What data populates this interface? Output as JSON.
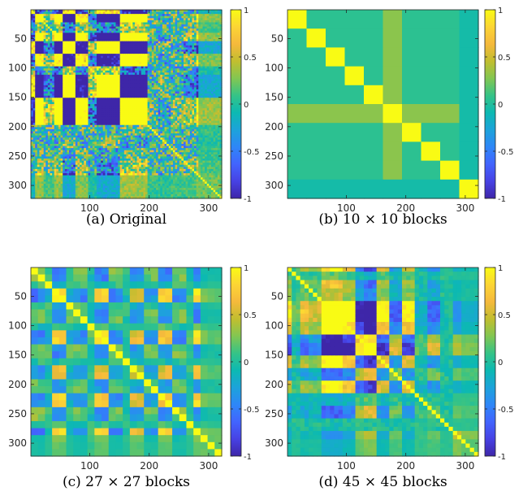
{
  "chart_data": [
    {
      "type": "heatmap",
      "caption": "(a) Original",
      "blocks": 0,
      "x_ticks": [
        100,
        200,
        300
      ],
      "y_ticks": [
        50,
        100,
        150,
        200,
        250,
        300
      ],
      "xlim": [
        1,
        322
      ],
      "ylim": [
        1,
        322
      ],
      "colorbar_ticks": [
        "1",
        "0.5",
        "0",
        "-0.5",
        "-1"
      ],
      "clim": [
        -1,
        1
      ]
    },
    {
      "type": "heatmap",
      "caption": "(b) 10 × 10 blocks",
      "blocks": 10,
      "x_ticks": [
        100,
        200,
        300
      ],
      "y_ticks": [
        50,
        100,
        150,
        200,
        250,
        300
      ],
      "xlim": [
        1,
        322
      ],
      "ylim": [
        1,
        322
      ],
      "colorbar_ticks": [
        "1",
        "0.5",
        "0",
        "-0.5",
        "-1"
      ],
      "clim": [
        -1,
        1
      ]
    },
    {
      "type": "heatmap",
      "caption": "(c) 27 × 27 blocks",
      "blocks": 27,
      "x_ticks": [
        100,
        200,
        300
      ],
      "y_ticks": [
        50,
        100,
        150,
        200,
        250,
        300
      ],
      "xlim": [
        1,
        322
      ],
      "ylim": [
        1,
        322
      ],
      "colorbar_ticks": [
        "1",
        "0.5",
        "0",
        "-0.5",
        "-1"
      ],
      "clim": [
        -1,
        1
      ]
    },
    {
      "type": "heatmap",
      "caption": "(d) 45 × 45 blocks",
      "blocks": 45,
      "x_ticks": [
        100,
        200,
        300
      ],
      "y_ticks": [
        50,
        100,
        150,
        200,
        250,
        300
      ],
      "xlim": [
        1,
        322
      ],
      "ylim": [
        1,
        322
      ],
      "colorbar_ticks": [
        "1",
        "0.5",
        "0",
        "-0.5",
        "-1"
      ],
      "clim": [
        -1,
        1
      ]
    }
  ],
  "colormap": [
    "#3e26a8",
    "#4742e4",
    "#4264fe",
    "#2e87f7",
    "#1ca3da",
    "#0cb9b2",
    "#35c387",
    "#82c652",
    "#c1be2f",
    "#f5b93c",
    "#fcd535",
    "#f9fb14"
  ]
}
